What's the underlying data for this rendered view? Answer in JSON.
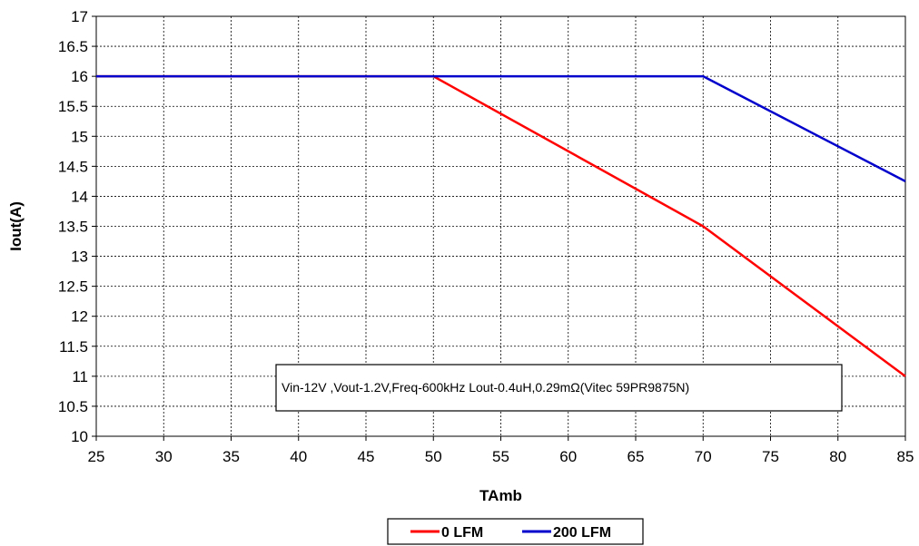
{
  "chart_data": {
    "type": "line",
    "title": "",
    "xlabel": "TAmb",
    "ylabel": "Iout(A)",
    "xlim": [
      25,
      85
    ],
    "ylim": [
      10,
      17
    ],
    "x_ticks": [
      25,
      30,
      35,
      40,
      45,
      50,
      55,
      60,
      65,
      70,
      75,
      80,
      85
    ],
    "y_ticks": [
      10,
      10.5,
      11,
      11.5,
      12,
      12.5,
      13,
      13.5,
      14,
      14.5,
      15,
      15.5,
      16,
      16.5,
      17
    ],
    "grid": true,
    "legend_position": "bottom",
    "annotation": "Vin-12V ,Vout-1.2V,Freq-600kHz   Lout-0.4uH,0.29mΩ(Vitec 59PR9875N)",
    "series": [
      {
        "name": "0 LFM",
        "color": "#ff0000",
        "points": [
          [
            25,
            16
          ],
          [
            50,
            16
          ],
          [
            70,
            13.5
          ],
          [
            85,
            11
          ]
        ]
      },
      {
        "name": "200 LFM",
        "color": "#0000cc",
        "points": [
          [
            25,
            16
          ],
          [
            70,
            16
          ],
          [
            85,
            14.25
          ]
        ]
      }
    ]
  }
}
